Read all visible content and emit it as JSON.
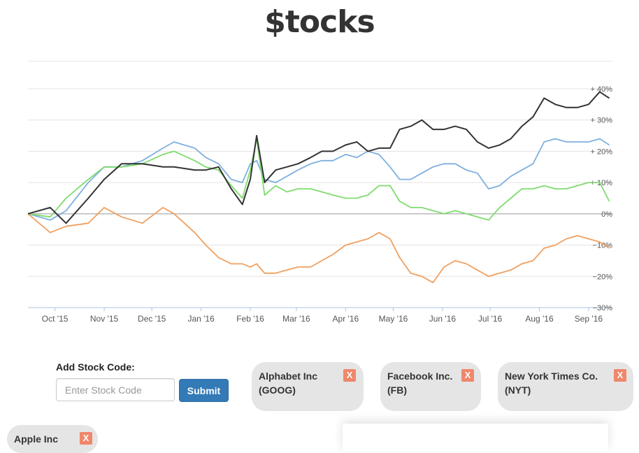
{
  "page": {
    "title": "$tocks"
  },
  "form": {
    "label": "Add Stock Code:",
    "placeholder": "Enter Stock Code",
    "submit_label": "Submit"
  },
  "stocks": [
    {
      "name": "Alphabet Inc",
      "code": "(GOOG)",
      "remove_label": "X"
    },
    {
      "name": "Facebook Inc.",
      "code": "(FB)",
      "remove_label": "X"
    },
    {
      "name": "New York Times Co.",
      "code": "(NYT)",
      "remove_label": "X"
    },
    {
      "name": "Apple Inc",
      "code": "",
      "remove_label": "X"
    }
  ],
  "colors": {
    "accent": "#337ab7",
    "remove": "#f0876a",
    "card": "#e5e5e5"
  },
  "chart_data": {
    "type": "line",
    "yunit": "%",
    "ylim": [
      -30,
      42
    ],
    "yticks": [
      {
        "value": 40,
        "label": "+ 40%"
      },
      {
        "value": 30,
        "label": "+ 30%"
      },
      {
        "value": 20,
        "label": "+ 20%"
      },
      {
        "value": 10,
        "label": "+ 10%"
      },
      {
        "value": 0,
        "label": "0%"
      },
      {
        "value": -10,
        "label": "−10%"
      },
      {
        "value": -20,
        "label": "−20%"
      },
      {
        "value": -30,
        "label": "−30%"
      }
    ],
    "xlim": [
      "2015-09-14",
      "2016-09-16"
    ],
    "xticks": [
      {
        "value": "2015-10-01",
        "label": "Oct '15"
      },
      {
        "value": "2015-11-01",
        "label": "Nov '15"
      },
      {
        "value": "2015-12-01",
        "label": "Dec '15"
      },
      {
        "value": "2016-01-01",
        "label": "Jan '16"
      },
      {
        "value": "2016-02-01",
        "label": "Feb '16"
      },
      {
        "value": "2016-03-01",
        "label": "Mar '16"
      },
      {
        "value": "2016-04-01",
        "label": "Apr '16"
      },
      {
        "value": "2016-05-01",
        "label": "May '16"
      },
      {
        "value": "2016-06-01",
        "label": "Jun '16"
      },
      {
        "value": "2016-07-01",
        "label": "Jul '16"
      },
      {
        "value": "2016-08-01",
        "label": "Aug '16"
      },
      {
        "value": "2016-09-01",
        "label": "Sep '16"
      }
    ],
    "series": [
      {
        "color": "#7eb0e0",
        "points": [
          [
            "2015-09-14",
            0
          ],
          [
            "2015-09-28",
            -2
          ],
          [
            "2015-10-08",
            1
          ],
          [
            "2015-10-22",
            10
          ],
          [
            "2015-11-01",
            15
          ],
          [
            "2015-11-12",
            15
          ],
          [
            "2015-11-25",
            17
          ],
          [
            "2015-12-08",
            21
          ],
          [
            "2015-12-15",
            23
          ],
          [
            "2015-12-28",
            21
          ],
          [
            "2016-01-04",
            18
          ],
          [
            "2016-01-12",
            16
          ],
          [
            "2016-01-20",
            11
          ],
          [
            "2016-01-27",
            10
          ],
          [
            "2016-02-01",
            16
          ],
          [
            "2016-02-05",
            17
          ],
          [
            "2016-02-10",
            11
          ],
          [
            "2016-02-17",
            10
          ],
          [
            "2016-02-24",
            12
          ],
          [
            "2016-03-02",
            14
          ],
          [
            "2016-03-10",
            16
          ],
          [
            "2016-03-17",
            17
          ],
          [
            "2016-03-24",
            17
          ],
          [
            "2016-04-01",
            19
          ],
          [
            "2016-04-08",
            18
          ],
          [
            "2016-04-15",
            20
          ],
          [
            "2016-04-22",
            19
          ],
          [
            "2016-04-29",
            15
          ],
          [
            "2016-05-05",
            11
          ],
          [
            "2016-05-12",
            11
          ],
          [
            "2016-05-19",
            13
          ],
          [
            "2016-05-26",
            15
          ],
          [
            "2016-06-02",
            16
          ],
          [
            "2016-06-09",
            16
          ],
          [
            "2016-06-16",
            14
          ],
          [
            "2016-06-23",
            13
          ],
          [
            "2016-06-30",
            8
          ],
          [
            "2016-07-07",
            9
          ],
          [
            "2016-07-14",
            12
          ],
          [
            "2016-07-21",
            14
          ],
          [
            "2016-07-28",
            16
          ],
          [
            "2016-08-04",
            23
          ],
          [
            "2016-08-11",
            24
          ],
          [
            "2016-08-18",
            23
          ],
          [
            "2016-08-25",
            23
          ],
          [
            "2016-09-01",
            23
          ],
          [
            "2016-09-08",
            24
          ],
          [
            "2016-09-14",
            22
          ]
        ]
      },
      {
        "color": "#7fdc6e",
        "points": [
          [
            "2015-09-14",
            0
          ],
          [
            "2015-09-28",
            -1
          ],
          [
            "2015-10-08",
            5
          ],
          [
            "2015-10-22",
            11
          ],
          [
            "2015-11-01",
            15
          ],
          [
            "2015-11-12",
            15
          ],
          [
            "2015-11-25",
            16
          ],
          [
            "2015-12-08",
            19
          ],
          [
            "2015-12-15",
            20
          ],
          [
            "2015-12-28",
            17
          ],
          [
            "2016-01-04",
            15
          ],
          [
            "2016-01-12",
            14
          ],
          [
            "2016-01-20",
            9
          ],
          [
            "2016-01-27",
            5
          ],
          [
            "2016-02-01",
            14
          ],
          [
            "2016-02-05",
            24
          ],
          [
            "2016-02-10",
            6
          ],
          [
            "2016-02-17",
            9
          ],
          [
            "2016-02-24",
            7
          ],
          [
            "2016-03-02",
            8
          ],
          [
            "2016-03-10",
            8
          ],
          [
            "2016-03-17",
            7
          ],
          [
            "2016-03-24",
            6
          ],
          [
            "2016-04-01",
            5
          ],
          [
            "2016-04-08",
            5
          ],
          [
            "2016-04-15",
            6
          ],
          [
            "2016-04-22",
            9
          ],
          [
            "2016-04-29",
            9
          ],
          [
            "2016-05-05",
            4
          ],
          [
            "2016-05-12",
            2
          ],
          [
            "2016-05-19",
            2
          ],
          [
            "2016-05-26",
            1
          ],
          [
            "2016-06-02",
            0
          ],
          [
            "2016-06-09",
            1
          ],
          [
            "2016-06-16",
            0
          ],
          [
            "2016-06-23",
            -1
          ],
          [
            "2016-06-30",
            -2
          ],
          [
            "2016-07-07",
            2
          ],
          [
            "2016-07-14",
            5
          ],
          [
            "2016-07-21",
            8
          ],
          [
            "2016-07-28",
            8
          ],
          [
            "2016-08-04",
            9
          ],
          [
            "2016-08-11",
            8
          ],
          [
            "2016-08-18",
            8
          ],
          [
            "2016-08-25",
            9
          ],
          [
            "2016-09-01",
            10
          ],
          [
            "2016-09-08",
            10
          ],
          [
            "2016-09-14",
            4
          ]
        ]
      },
      {
        "color": "#f0a060",
        "points": [
          [
            "2015-09-14",
            0
          ],
          [
            "2015-09-28",
            -6
          ],
          [
            "2015-10-08",
            -4
          ],
          [
            "2015-10-22",
            -3
          ],
          [
            "2015-11-01",
            2
          ],
          [
            "2015-11-12",
            -1
          ],
          [
            "2015-11-25",
            -3
          ],
          [
            "2015-12-08",
            2
          ],
          [
            "2015-12-15",
            0
          ],
          [
            "2015-12-28",
            -6
          ],
          [
            "2016-01-04",
            -10
          ],
          [
            "2016-01-12",
            -14
          ],
          [
            "2016-01-20",
            -16
          ],
          [
            "2016-01-27",
            -16
          ],
          [
            "2016-02-01",
            -17
          ],
          [
            "2016-02-05",
            -16
          ],
          [
            "2016-02-10",
            -19
          ],
          [
            "2016-02-17",
            -19
          ],
          [
            "2016-02-24",
            -18
          ],
          [
            "2016-03-02",
            -17
          ],
          [
            "2016-03-10",
            -17
          ],
          [
            "2016-03-17",
            -15
          ],
          [
            "2016-03-24",
            -13
          ],
          [
            "2016-04-01",
            -10
          ],
          [
            "2016-04-08",
            -9
          ],
          [
            "2016-04-15",
            -8
          ],
          [
            "2016-04-22",
            -6
          ],
          [
            "2016-04-29",
            -8
          ],
          [
            "2016-05-05",
            -14
          ],
          [
            "2016-05-12",
            -19
          ],
          [
            "2016-05-19",
            -20
          ],
          [
            "2016-05-26",
            -22
          ],
          [
            "2016-06-02",
            -17
          ],
          [
            "2016-06-09",
            -15
          ],
          [
            "2016-06-16",
            -16
          ],
          [
            "2016-06-23",
            -18
          ],
          [
            "2016-06-30",
            -20
          ],
          [
            "2016-07-07",
            -19
          ],
          [
            "2016-07-14",
            -18
          ],
          [
            "2016-07-21",
            -16
          ],
          [
            "2016-07-28",
            -15
          ],
          [
            "2016-08-04",
            -11
          ],
          [
            "2016-08-11",
            -10
          ],
          [
            "2016-08-18",
            -8
          ],
          [
            "2016-08-25",
            -7
          ],
          [
            "2016-09-01",
            -8
          ],
          [
            "2016-09-08",
            -9
          ],
          [
            "2016-09-14",
            -11
          ]
        ]
      },
      {
        "color": "#333333",
        "points": [
          [
            "2015-09-14",
            0
          ],
          [
            "2015-09-28",
            2
          ],
          [
            "2015-10-08",
            -3
          ],
          [
            "2015-10-22",
            5
          ],
          [
            "2015-11-01",
            11
          ],
          [
            "2015-11-12",
            16
          ],
          [
            "2015-11-25",
            16
          ],
          [
            "2015-12-08",
            15
          ],
          [
            "2015-12-15",
            15
          ],
          [
            "2015-12-28",
            14
          ],
          [
            "2016-01-04",
            14
          ],
          [
            "2016-01-12",
            15
          ],
          [
            "2016-01-20",
            8
          ],
          [
            "2016-01-27",
            3
          ],
          [
            "2016-02-01",
            11
          ],
          [
            "2016-02-05",
            25
          ],
          [
            "2016-02-10",
            10
          ],
          [
            "2016-02-17",
            14
          ],
          [
            "2016-02-24",
            15
          ],
          [
            "2016-03-02",
            16
          ],
          [
            "2016-03-10",
            18
          ],
          [
            "2016-03-17",
            20
          ],
          [
            "2016-03-24",
            20
          ],
          [
            "2016-04-01",
            22
          ],
          [
            "2016-04-08",
            23
          ],
          [
            "2016-04-15",
            20
          ],
          [
            "2016-04-22",
            21
          ],
          [
            "2016-04-29",
            21
          ],
          [
            "2016-05-05",
            27
          ],
          [
            "2016-05-12",
            28
          ],
          [
            "2016-05-19",
            30
          ],
          [
            "2016-05-26",
            27
          ],
          [
            "2016-06-02",
            27
          ],
          [
            "2016-06-09",
            28
          ],
          [
            "2016-06-16",
            27
          ],
          [
            "2016-06-23",
            23
          ],
          [
            "2016-06-30",
            21
          ],
          [
            "2016-07-07",
            22
          ],
          [
            "2016-07-14",
            24
          ],
          [
            "2016-07-21",
            28
          ],
          [
            "2016-07-28",
            31
          ],
          [
            "2016-08-04",
            37
          ],
          [
            "2016-08-11",
            35
          ],
          [
            "2016-08-18",
            34
          ],
          [
            "2016-08-25",
            34
          ],
          [
            "2016-09-01",
            35
          ],
          [
            "2016-09-08",
            39
          ],
          [
            "2016-09-14",
            37
          ]
        ]
      }
    ]
  }
}
